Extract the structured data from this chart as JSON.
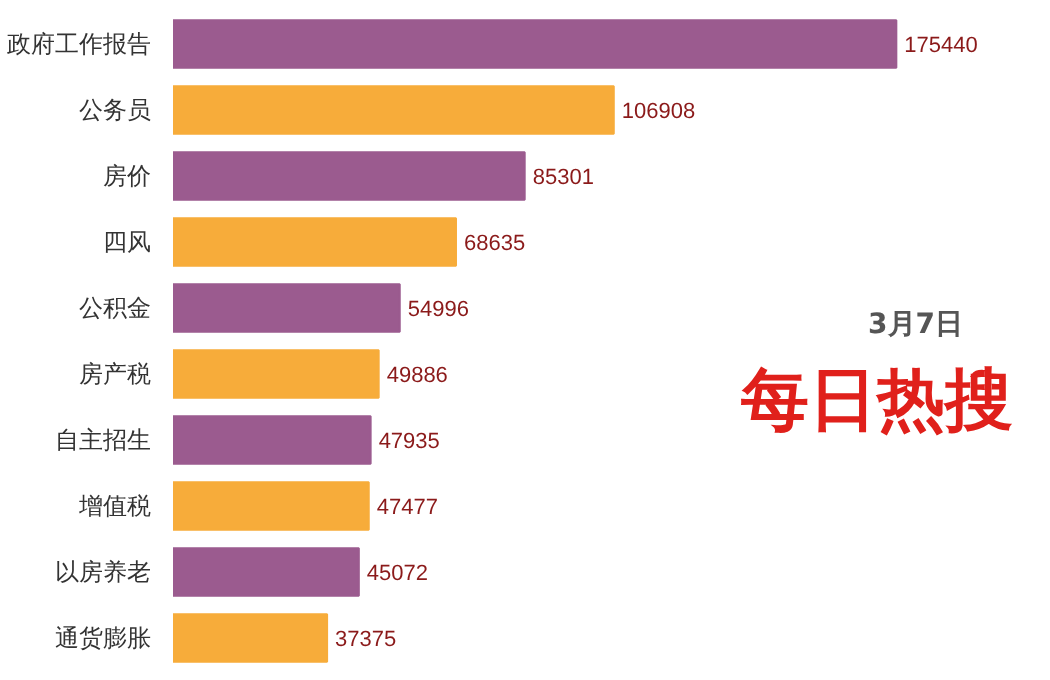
{
  "chart_data": {
    "type": "bar",
    "orientation": "horizontal",
    "title": "每日热搜",
    "subtitle": "3月7日",
    "categories": [
      "政府工作报告",
      "公务员",
      "房价",
      "四风",
      "公积金",
      "房产税",
      "自主招生",
      "增值税",
      "以房养老",
      "通货膨胀"
    ],
    "values": [
      175440,
      106908,
      85301,
      68635,
      54996,
      49886,
      47935,
      47477,
      45072,
      37375
    ],
    "colors": [
      "#9b5b8f",
      "#f7ac3a",
      "#9b5b8f",
      "#f7ac3a",
      "#9b5b8f",
      "#f7ac3a",
      "#9b5b8f",
      "#f7ac3a",
      "#9b5b8f",
      "#f7ac3a"
    ],
    "data_labels": true,
    "grid": false
  }
}
